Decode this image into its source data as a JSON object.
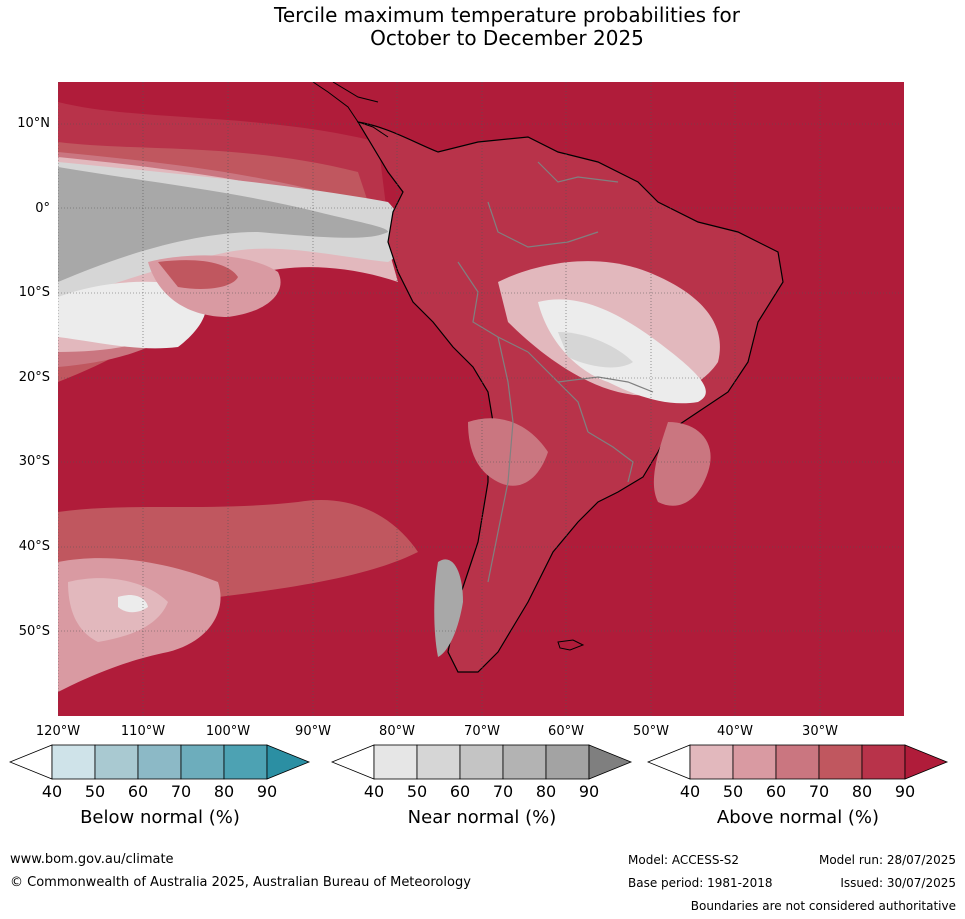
{
  "title_line1": "Tercile maximum temperature probabilities for",
  "title_line2": "October to December 2025",
  "lat_labels": [
    "10°N",
    "0°",
    "10°S",
    "20°S",
    "30°S",
    "40°S",
    "50°S"
  ],
  "lon_labels": [
    "120°W",
    "110°W",
    "100°W",
    "90°W",
    "80°W",
    "70°W",
    "60°W",
    "50°W",
    "40°W",
    "30°W"
  ],
  "colorbars": [
    {
      "title": "Below normal (%)",
      "ticks": [
        "40",
        "50",
        "60",
        "70",
        "80",
        "90"
      ],
      "colors": [
        "#ffffff",
        "#cfe3e9",
        "#a9c9d1",
        "#8cb9c6",
        "#6dadbc",
        "#4da2b3",
        "#2b8fa3"
      ]
    },
    {
      "title": "Near normal (%)",
      "ticks": [
        "40",
        "50",
        "60",
        "70",
        "80",
        "90"
      ],
      "colors": [
        "#ffffff",
        "#e6e6e6",
        "#d6d6d6",
        "#c4c4c4",
        "#b3b3b3",
        "#a3a3a3",
        "#7f7f7f"
      ]
    },
    {
      "title": "Above normal (%)",
      "ticks": [
        "40",
        "50",
        "60",
        "70",
        "80",
        "90"
      ],
      "colors": [
        "#ffffff",
        "#e2b8bd",
        "#d99aa2",
        "#ca7680",
        "#c0575f",
        "#b8334a",
        "#b01c3a"
      ]
    }
  ],
  "footer": {
    "website": "www.bom.gov.au/climate",
    "copyright": "© Commonwealth of Australia 2025, Australian Bureau of Meteorology",
    "model": "Model: ACCESS-S2",
    "base_period": "Base period: 1981-2018",
    "model_run": "Model run: 28/07/2025",
    "issued": "Issued: 30/07/2025",
    "disclaimer": "Boundaries are not considered authoritative"
  },
  "colors": {
    "above90": "#b01c3a",
    "above80": "#b8334a",
    "above70": "#c0575f",
    "above60": "#ca7680",
    "above50": "#d99aa2",
    "above40": "#e2b8bd",
    "near50": "#d6d6d6",
    "near60": "#c4c4c4",
    "near80": "#a8a8a8",
    "low": "#ececec"
  }
}
